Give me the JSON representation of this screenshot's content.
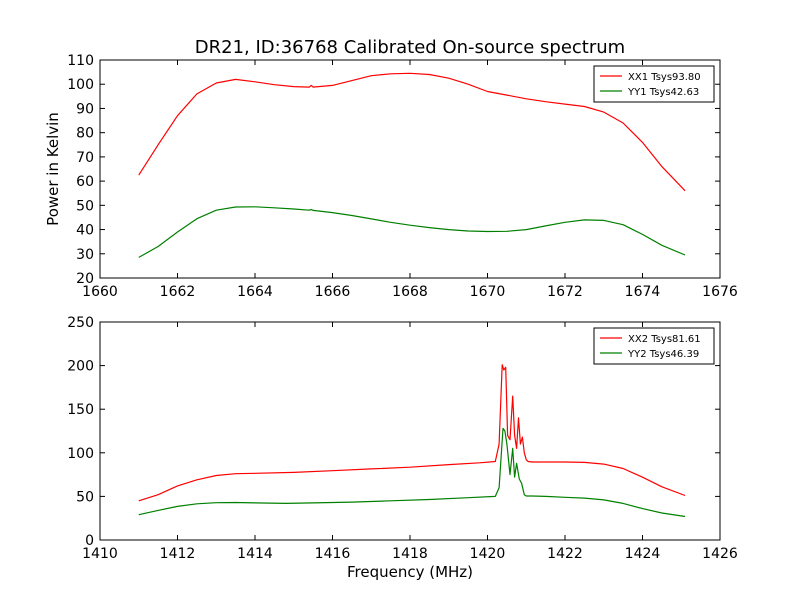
{
  "chart_data": [
    {
      "type": "line",
      "title": "DR21, ID:36768 Calibrated On-source spectrum",
      "xlabel": "",
      "ylabel": "Power in Kelvin",
      "xlim": [
        1660,
        1676
      ],
      "ylim": [
        20,
        110
      ],
      "xticks": [
        "1660",
        "1662",
        "1664",
        "1666",
        "1668",
        "1670",
        "1672",
        "1674",
        "1676"
      ],
      "yticks": [
        "20",
        "30",
        "40",
        "50",
        "60",
        "70",
        "80",
        "90",
        "100",
        "110"
      ],
      "legend_position": "top-right",
      "series": [
        {
          "name": "XX1 Tsys93.80",
          "color": "#ff0000",
          "x": [
            1661.0,
            1661.5,
            1662.0,
            1662.5,
            1663.0,
            1663.5,
            1664.0,
            1664.5,
            1665.0,
            1665.4,
            1665.45,
            1665.5,
            1666.0,
            1666.5,
            1667.0,
            1667.5,
            1668.0,
            1668.5,
            1669.0,
            1669.5,
            1670.0,
            1670.5,
            1671.0,
            1671.5,
            1672.0,
            1672.5,
            1673.0,
            1673.5,
            1674.0,
            1674.5,
            1675.1
          ],
          "y": [
            62.5,
            75,
            87,
            96,
            100.5,
            102,
            101,
            99.8,
            99,
            98.8,
            99.5,
            98.8,
            99.5,
            101.5,
            103.5,
            104.3,
            104.5,
            104,
            102.5,
            100,
            97,
            95.5,
            94,
            92.8,
            91.8,
            90.8,
            88.5,
            84,
            76,
            66,
            56
          ]
        },
        {
          "name": "YY1 Tsys42.63",
          "color": "#008000",
          "x": [
            1661.0,
            1661.5,
            1662.0,
            1662.5,
            1663.0,
            1663.5,
            1664.0,
            1664.5,
            1665.0,
            1665.4,
            1665.45,
            1665.5,
            1666.0,
            1666.5,
            1667.0,
            1667.5,
            1668.0,
            1668.5,
            1669.0,
            1669.5,
            1670.0,
            1670.5,
            1671.0,
            1671.5,
            1672.0,
            1672.5,
            1673.0,
            1673.5,
            1674.0,
            1674.5,
            1675.1
          ],
          "y": [
            28.5,
            33,
            39,
            44.5,
            48,
            49.3,
            49.4,
            49,
            48.5,
            48,
            48.3,
            47.9,
            47,
            45.8,
            44.4,
            43,
            41.8,
            40.8,
            40,
            39.4,
            39.2,
            39.3,
            40,
            41.5,
            43,
            44,
            43.8,
            42,
            38,
            33.5,
            29.5
          ]
        }
      ]
    },
    {
      "type": "line",
      "title": "",
      "xlabel": "Frequency (MHz)",
      "ylabel": "",
      "xlim": [
        1410,
        1426
      ],
      "ylim": [
        0,
        250
      ],
      "xticks": [
        "1410",
        "1412",
        "1414",
        "1416",
        "1418",
        "1420",
        "1422",
        "1424",
        "1426"
      ],
      "yticks": [
        "0",
        "50",
        "100",
        "150",
        "200",
        "250"
      ],
      "legend_position": "top-right",
      "series": [
        {
          "name": "XX2 Tsys81.61",
          "color": "#ff0000",
          "x": [
            1411.0,
            1411.5,
            1412.0,
            1412.5,
            1413.0,
            1413.5,
            1414.0,
            1415.0,
            1416.0,
            1417.0,
            1418.0,
            1419.0,
            1419.8,
            1420.2,
            1420.3,
            1420.38,
            1420.42,
            1420.47,
            1420.52,
            1420.58,
            1420.65,
            1420.7,
            1420.75,
            1420.8,
            1420.85,
            1420.9,
            1420.95,
            1421.0,
            1421.05,
            1421.15,
            1421.5,
            1422.0,
            1422.5,
            1423.0,
            1423.5,
            1424.0,
            1424.5,
            1425.1
          ],
          "y": [
            45,
            52,
            62,
            69,
            74,
            76,
            76.5,
            77.5,
            79.5,
            81.5,
            83.5,
            86.5,
            88.5,
            90,
            110,
            201,
            195,
            198,
            120,
            115,
            165,
            120,
            105,
            140,
            110,
            118,
            100,
            92,
            90,
            89.5,
            89.5,
            89.5,
            89,
            87,
            82,
            72,
            61,
            51
          ]
        },
        {
          "name": "YY2 Tsys46.39",
          "color": "#008000",
          "x": [
            1411.0,
            1411.5,
            1412.0,
            1412.5,
            1413.0,
            1413.5,
            1414.0,
            1414.8,
            1415.5,
            1416.5,
            1417.5,
            1418.5,
            1419.5,
            1420.2,
            1420.3,
            1420.4,
            1420.45,
            1420.5,
            1420.58,
            1420.65,
            1420.7,
            1420.75,
            1420.82,
            1420.88,
            1420.95,
            1421.0,
            1421.05,
            1421.15,
            1421.5,
            1422.0,
            1422.5,
            1423.0,
            1423.5,
            1424.0,
            1424.5,
            1425.1
          ],
          "y": [
            29,
            34,
            38.5,
            41.5,
            42.8,
            43,
            42.5,
            42,
            42.5,
            43.5,
            45,
            46.5,
            48.5,
            50,
            60,
            128,
            125,
            110,
            75,
            105,
            72,
            88,
            70,
            65,
            52,
            50.5,
            50.5,
            50.5,
            50,
            49,
            48,
            46,
            42,
            36,
            31,
            27
          ]
        }
      ]
    }
  ]
}
